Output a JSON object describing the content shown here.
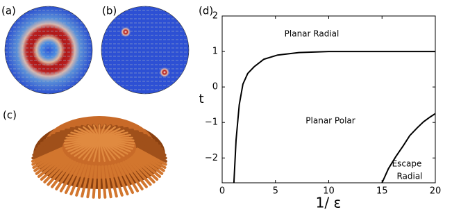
{
  "panels": [
    "(a)",
    "(b)",
    "(c)"
  ],
  "chart_data": {
    "type": "line",
    "label": "(d)",
    "xlabel": "1/ ε",
    "ylabel": "t",
    "xlim": [
      0,
      20
    ],
    "ylim": [
      -2.7,
      2
    ],
    "xticks": [
      0,
      5,
      10,
      15,
      20
    ],
    "yticks": [
      2,
      1,
      0,
      {
        "value": -1,
        "label": "−1"
      },
      {
        "value": -2,
        "label": "−2"
      }
    ],
    "series": [
      {
        "color": "#000000",
        "x": [
          1.1,
          1.3,
          1.6,
          1.95,
          2.4,
          3,
          3.9,
          5.2,
          7.2,
          10,
          15,
          20
        ],
        "values": [
          -2.7,
          -1.5,
          -0.5,
          0.08,
          0.38,
          0.57,
          0.78,
          0.9,
          0.97,
          1.0,
          1.0,
          1.0
        ]
      },
      {
        "color": "#000000",
        "x": [
          15.0,
          15.6,
          16.3,
          17.0,
          17.6,
          18.3,
          18.9,
          19.5,
          20
        ],
        "values": [
          -2.7,
          -2.3,
          -1.96,
          -1.65,
          -1.37,
          -1.15,
          -0.98,
          -0.85,
          -0.75
        ]
      }
    ],
    "annotations": [
      "Planar Radial",
      "Planar Polar",
      "Escape",
      "Radial"
    ]
  }
}
